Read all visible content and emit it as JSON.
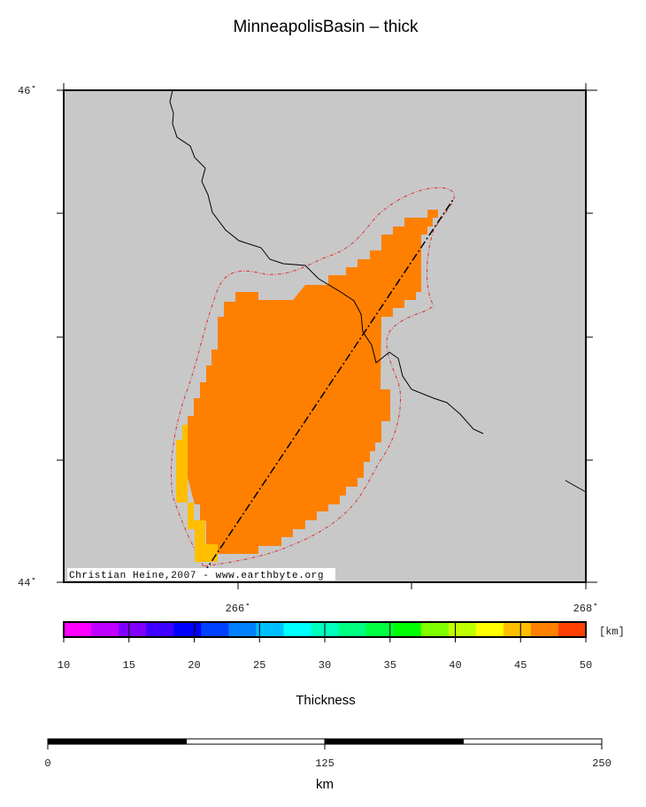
{
  "title": "MinneapolisBasin – thick",
  "map": {
    "lat_labels": [
      "46˚",
      "44˚"
    ],
    "lon_labels": [
      "266˚",
      "268˚"
    ],
    "credit": "Christian Heine,2007 - www.earthbyte.org"
  },
  "colorbar": {
    "label": "Thickness",
    "unit": "[km]",
    "range": [
      10,
      50
    ],
    "ticks": [
      10,
      15,
      20,
      25,
      30,
      35,
      40,
      45,
      50
    ],
    "colors": [
      "#ff00ff",
      "#bf00ff",
      "#8000ff",
      "#4000ff",
      "#0000ff",
      "#0040ff",
      "#0080ff",
      "#00bfff",
      "#00ffff",
      "#00ffbf",
      "#00ff80",
      "#00ff40",
      "#00ff00",
      "#80ff00",
      "#bfff00",
      "#ffff00",
      "#ffbf00",
      "#ff8000",
      "#ff4000"
    ]
  },
  "scalebar": {
    "unit": "km",
    "range": [
      0,
      250
    ],
    "ticks": [
      0,
      125,
      250
    ]
  }
}
